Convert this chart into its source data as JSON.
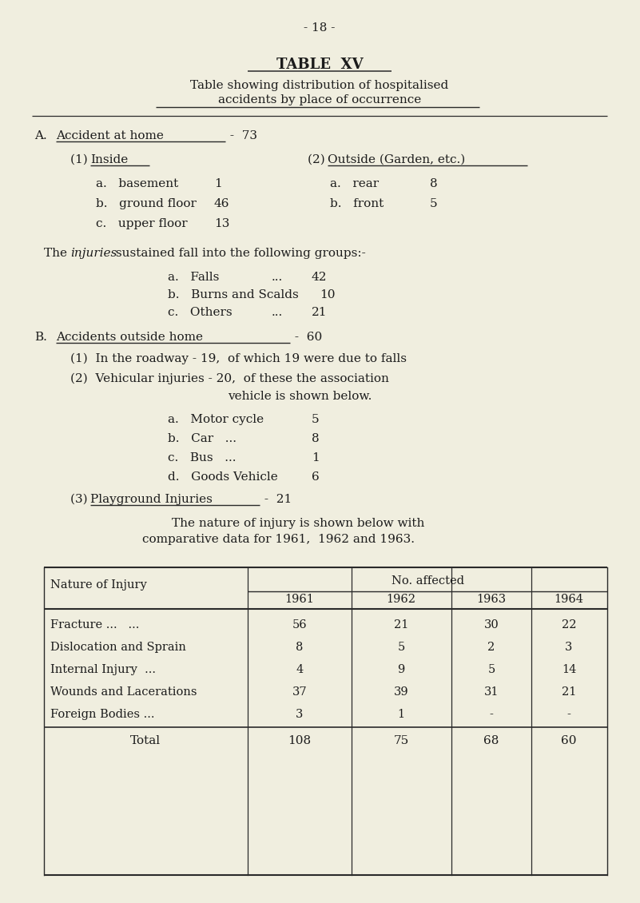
{
  "background_color": "#f0eedf",
  "page_number": "- 18 -",
  "title": "TABLE  XV",
  "subtitle_line1": "Table showing distribution of hospitalised",
  "subtitle_line2": "accidents by place of occurrence",
  "section_a": "A.",
  "section_a_text": "Accident at home",
  "section_a_num": " -  73",
  "inside_label": "(1) ",
  "inside_underline": "Inside",
  "outside_label": "(2) ",
  "outside_underline": "Outside (Garden, etc.)",
  "inside_items": [
    [
      "a.   basement",
      "1"
    ],
    [
      "b.   ground floor",
      "46"
    ],
    [
      "c.   upper floor",
      "13"
    ]
  ],
  "outside_items": [
    [
      "a.   rear",
      "8"
    ],
    [
      "b.   front",
      "5"
    ]
  ],
  "injuries_intro": "The ",
  "injuries_bold": "injuries",
  "injuries_rest": " sustained fall into the following groups:-",
  "falls_label": "a.   Falls",
  "falls_dots": "...",
  "falls_val": "42",
  "burns_label": "b.   Burns and Scalds",
  "burns_val": "10",
  "others_label": "c.   Others",
  "others_dots": "...",
  "others_val": "21",
  "section_b": "B.",
  "section_b_text": "Accidents outside home",
  "section_b_num": " -  60",
  "roadway": "(1)  In the roadway - 19,  of which 19 were due to falls",
  "vehicular_line1": "(2)  Vehicular injuries - 20,  of these the association",
  "vehicular_line2": "vehicle is shown below.",
  "vehicle_items": [
    [
      "a.   Motor cycle",
      "5"
    ],
    [
      "b.   Car   ...",
      "8"
    ],
    [
      "c.   Bus   ...",
      "1"
    ],
    [
      "d.   Goods Vehicle",
      "6"
    ]
  ],
  "playground_label": "(3) ",
  "playground_underline": "Playground Injuries",
  "playground_num": " -  21",
  "nature_line1": "The nature of injury is shown below with",
  "nature_line2": "comparative data for 1961,  1962 and 1963.",
  "table_col0_header": "Nature of Injury",
  "table_no_affected": "No. affected",
  "table_years": [
    "1961",
    "1962",
    "1963",
    "1964"
  ],
  "table_rows": [
    [
      "Fracture ...   ...",
      "56",
      "21",
      "30",
      "22"
    ],
    [
      "Dislocation and Sprain",
      "8",
      "5",
      "2",
      "3"
    ],
    [
      "Internal Injury  ...",
      "4",
      "9",
      "5",
      "14"
    ],
    [
      "Wounds and Lacerations",
      "37",
      "39",
      "31",
      "21"
    ],
    [
      "Foreign Bodies ...",
      "3",
      "1",
      "-",
      "-"
    ]
  ],
  "table_total": [
    "Total",
    "108",
    "75",
    "68",
    "60"
  ],
  "text_color": "#1c1c1c",
  "line_color": "#2a2a2a"
}
